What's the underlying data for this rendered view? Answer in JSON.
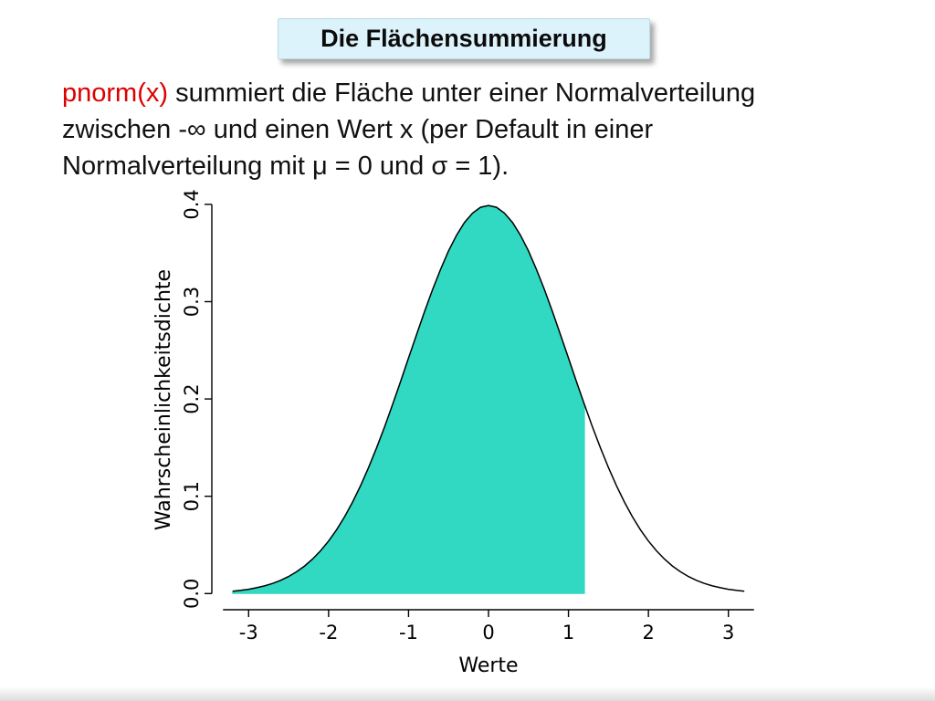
{
  "slide": {
    "title": "Die Flächensummierung"
  },
  "body": {
    "line1_highlight": "pnorm(x)",
    "line1_rest": " summiert die Fläche unter einer Normalverteilung",
    "line2": "zwischen -∞ und einen Wert x (per Default in einer",
    "line3": "Normalverteilung mit μ = 0 und σ = 1).",
    "highlight_color": "#dd0000"
  },
  "chart_data": {
    "type": "area",
    "description": "Standard normal probability density curve; area under the curve shaded from -infinity up to x = 1.2 (pnorm)",
    "mu": 0,
    "sigma": 1,
    "x": [
      -3.2,
      -3.1,
      -3,
      -2.9,
      -2.8,
      -2.7,
      -2.6,
      -2.5,
      -2.4,
      -2.3,
      -2.2,
      -2.1,
      -2,
      -1.9,
      -1.8,
      -1.7,
      -1.6,
      -1.5,
      -1.4,
      -1.3,
      -1.2,
      -1.1,
      -1,
      -0.9,
      -0.8,
      -0.7,
      -0.6,
      -0.5,
      -0.4,
      -0.3,
      -0.2,
      -0.1,
      0,
      0.1,
      0.2,
      0.3,
      0.4,
      0.5,
      0.6,
      0.7,
      0.8,
      0.9,
      1,
      1.1,
      1.2,
      1.3,
      1.4,
      1.5,
      1.6,
      1.7,
      1.8,
      1.9,
      2,
      2.1,
      2.2,
      2.3,
      2.4,
      2.5,
      2.6,
      2.7,
      2.8,
      2.9,
      3,
      3.1,
      3.2
    ],
    "y": [
      0.0024,
      0.0033,
      0.0044,
      0.006,
      0.0079,
      0.0104,
      0.0136,
      0.0175,
      0.0224,
      0.0283,
      0.0355,
      0.044,
      0.054,
      0.0656,
      0.079,
      0.094,
      0.1109,
      0.1295,
      0.1497,
      0.1714,
      0.1942,
      0.2179,
      0.242,
      0.2661,
      0.2897,
      0.3123,
      0.3332,
      0.3521,
      0.3683,
      0.3814,
      0.391,
      0.397,
      0.3989,
      0.397,
      0.391,
      0.3814,
      0.3683,
      0.3521,
      0.3332,
      0.3123,
      0.2897,
      0.2661,
      0.242,
      0.2179,
      0.1942,
      0.1714,
      0.1497,
      0.1295,
      0.1109,
      0.094,
      0.079,
      0.0656,
      0.054,
      0.044,
      0.0355,
      0.0283,
      0.0224,
      0.0175,
      0.0136,
      0.0104,
      0.0079,
      0.006,
      0.0044,
      0.0033,
      0.0024
    ],
    "shade_to": 1.2,
    "x_ticks": [
      -3,
      -2,
      -1,
      0,
      1,
      2,
      3
    ],
    "y_ticks": [
      0.0,
      0.1,
      0.2,
      0.3,
      0.4
    ],
    "xlabel": "Werte",
    "ylabel": "Wahrscheinlichkeitsdichte",
    "xlim": [
      -3.46,
      3.46
    ],
    "ylim": [
      -0.0166,
      0.4149
    ],
    "grid": false,
    "legend": "none",
    "curve_color": "#000000",
    "fill_color": "#31d8c2"
  }
}
